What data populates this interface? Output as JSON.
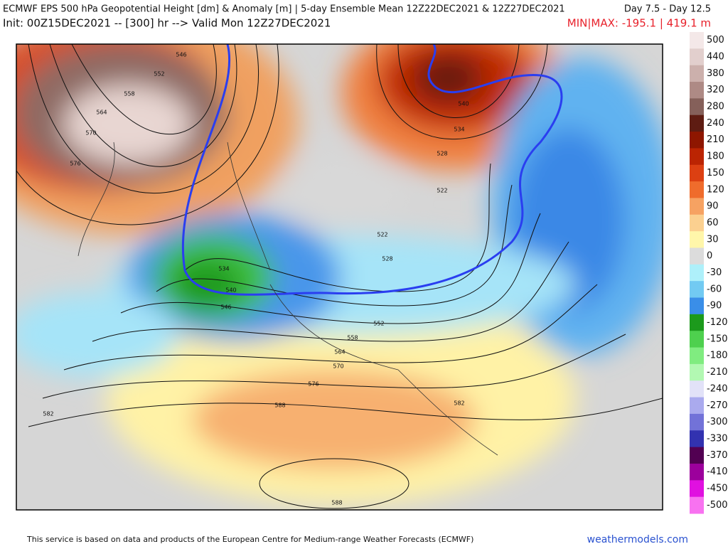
{
  "header": {
    "title": "ECMWF EPS 500 hPa Geopotential Height [dm] & Anomaly [m] | 5-day Ensemble Mean 12Z22DEC2021 & 12Z27DEC2021",
    "days": "Day 7.5 - Day 12.5",
    "init": "Init: 00Z15DEC2021 -- [300] hr --> Valid Mon 12Z27DEC2021",
    "minmax": "MIN|MAX: -195.1 | 419.1 m"
  },
  "colorbar": {
    "labels": [
      500,
      440,
      380,
      320,
      280,
      240,
      210,
      180,
      150,
      120,
      90,
      60,
      30,
      0,
      -30,
      -60,
      -90,
      -120,
      -150,
      -180,
      -210,
      -240,
      -270,
      -300,
      -330,
      -370,
      -410,
      -450,
      -500
    ],
    "colors": [
      "#f4e8e8",
      "#e2cfcd",
      "#ccb0ac",
      "#ae8a85",
      "#85605a",
      "#5e1c12",
      "#8e1600",
      "#bb2402",
      "#dc4012",
      "#ef6c2c",
      "#f6a262",
      "#fbd090",
      "#fff6aa",
      "#dcdcdc",
      "#aef0fa",
      "#72caf2",
      "#3a8ee8",
      "#1c9a1c",
      "#4ed04e",
      "#80ec80",
      "#b2f8b2",
      "#e2e2f8",
      "#aaaaee",
      "#7272d8",
      "#3232b0",
      "#520052",
      "#9c009c",
      "#e010e0",
      "#f872f0"
    ]
  },
  "map": {
    "contour_labels": [
      "546",
      "552",
      "558",
      "564",
      "570",
      "576",
      "540",
      "534",
      "528",
      "522",
      "522",
      "528",
      "534",
      "540",
      "546",
      "552",
      "558",
      "564",
      "570",
      "576",
      "582",
      "582",
      "588",
      "588"
    ]
  },
  "footer": {
    "credit": "This service is based on data and products of the European Centre for Medium-range Weather Forecasts (ECMWF)",
    "site": "weathermodels.com"
  }
}
